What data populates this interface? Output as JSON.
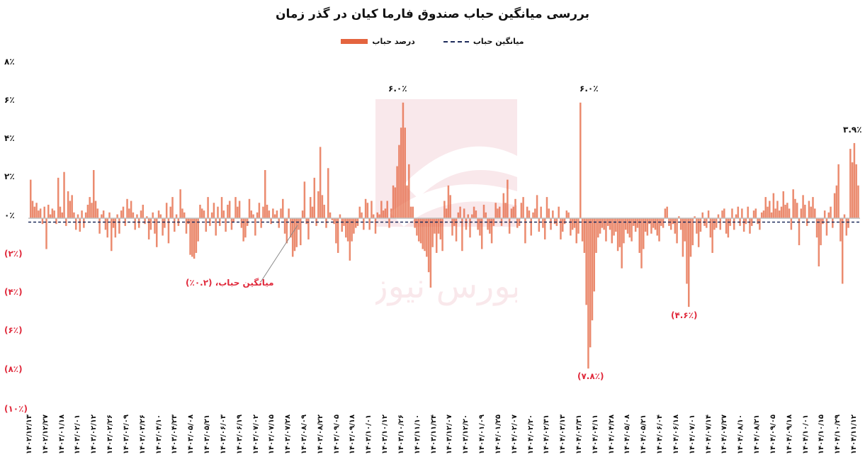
{
  "chart": {
    "title": "بررسی میانگین حباب صندوق فارما کیان در گذر زمان",
    "legend": [
      {
        "label": "میانگین حباب",
        "style": "dashed-line",
        "color": "#1d2b5a"
      },
      {
        "label": "درصد حباب",
        "style": "bar",
        "color": "#e4643f"
      }
    ],
    "y_ticks": [
      "۸٪",
      "۶٪",
      "۴٪",
      "۲٪",
      "۰٪",
      "(۲٪)",
      "(۴٪)",
      "(۶٪)",
      "(۸٪)",
      "(۱۰٪)"
    ],
    "annotations": {
      "peak1": "۶.۰٪",
      "peak2": "۶.۰٪",
      "last": "۳.۹٪",
      "trough1": "(۷.۸٪)",
      "trough2": "(۴.۶٪)",
      "mean_callout": "میانگین حباب، (۰.۲٪)"
    },
    "watermark": "بورس نیوز"
  },
  "chart_data": {
    "type": "bar",
    "title": "بررسی میانگین حباب صندوق فارما کیان در گذر زمان",
    "xlabel": "",
    "ylabel": "درصد حباب",
    "ylim": [
      -10,
      8
    ],
    "grid": false,
    "legend_position": "top",
    "tick_labels_x": [
      "۱۴۰۲/۱۲/۱۳",
      "۱۴۰۲/۱۲/۲۷",
      "۱۴۰۳/۰۱/۱۸",
      "۱۴۰۳/۰۲/۰۱",
      "۱۴۰۳/۰۲/۱۲",
      "۱۴۰۳/۰۲/۲۶",
      "۱۴۰۳/۰۳/۰۹",
      "۱۴۰۳/۰۳/۲۶",
      "۱۴۰۳/۰۴/۱۰",
      "۱۴۰۳/۰۴/۲۳",
      "۱۴۰۳/۰۵/۰۸",
      "۱۴۰۳/۰۵/۲۱",
      "۱۴۰۳/۰۶/۰۳",
      "۱۴۰۳/۰۶/۱۹",
      "۱۴۰۳/۰۷/۰۲",
      "۱۴۰۳/۰۷/۱۵",
      "۱۴۰۳/۰۷/۲۸",
      "۱۴۰۳/۰۸/۰۹",
      "۱۴۰۳/۰۸/۲۲",
      "۱۴۰۳/۰۹/۰۵",
      "۱۴۰۳/۰۹/۱۸",
      "۱۴۰۳/۱۰/۰۱",
      "۱۴۰۳/۱۰/۱۲",
      "۱۴۰۳/۱۰/۲۶",
      "۱۴۰۳/۱۱/۱۰",
      "۱۴۰۳/۱۱/۲۴",
      "۱۴۰۳/۱۲/۰۷",
      "۱۴۰۳/۱۲/۲۰",
      "۱۴۰۴/۰۱/۰۹",
      "۱۴۰۴/۰۱/۲۵",
      "۱۴۰۴/۰۲/۰۷",
      "۱۴۰۴/۰۲/۲۰",
      "۱۴۰۴/۰۲/۳۱",
      "۱۴۰۴/۰۳/۱۳",
      "۱۴۰۴/۰۳/۳۱",
      "۱۴۰۴/۰۴/۱۱",
      "۱۴۰۴/۰۴/۲۸",
      "۱۴۰۴/۰۵/۰۸",
      "۱۴۰۴/۰۵/۲۱",
      "۱۴۰۴/۰۶/۰۴",
      "۱۴۰۴/۰۶/۱۸",
      "۱۴۰۴/۰۷/۰۱",
      "۱۴۰۴/۰۷/۱۴",
      "۱۴۰۴/۰۷/۲۷",
      "۱۴۰۴/۰۸/۱۰",
      "۱۴۰۴/۰۸/۲۱",
      "۱۴۰۴/۰۹/۰۵",
      "۱۴۰۴/۰۹/۱۸",
      "۱۴۰۴/۱۰/۰۱",
      "۱۴۰۴/۱۰/۱۵",
      "۱۴۰۴/۱۰/۲۹",
      "۱۴۰۴/۱۱/۱۲"
    ],
    "series": [
      {
        "name": "درصد حباب",
        "color": "#e4643f",
        "values": [
          2.0,
          0.9,
          0.6,
          0.8,
          0.4,
          0.5,
          -0.3,
          0.6,
          -1.6,
          0.7,
          0.2,
          0.5,
          0.4,
          -0.3,
          2.1,
          0.6,
          0.3,
          2.4,
          -0.4,
          1.4,
          0.9,
          1.2,
          0.3,
          -0.6,
          0.2,
          -0.7,
          0.4,
          -0.5,
          0.3,
          0.7,
          1.1,
          0.8,
          2.5,
          0.9,
          0.5,
          -0.8,
          0.2,
          0.4,
          -0.6,
          -1.0,
          0.3,
          -1.7,
          -0.5,
          -1.0,
          0.2,
          -0.8,
          0.4,
          0.6,
          -0.4,
          1.0,
          0.5,
          0.9,
          0.3,
          -0.6,
          0.2,
          -0.5,
          0.4,
          0.7,
          -0.3,
          0.1,
          -1.1,
          -0.6,
          0.3,
          -0.8,
          -1.5,
          0.4,
          0.2,
          -0.9,
          -0.5,
          0.8,
          -1.3,
          0.6,
          1.1,
          -0.7,
          0.2,
          -0.4,
          1.5,
          0.5,
          0.3,
          -0.8,
          -0.3,
          -1.9,
          -2.0,
          -2.1,
          -1.8,
          -1.2,
          0.7,
          0.5,
          0.4,
          -0.7,
          1.1,
          -0.4,
          0.3,
          0.8,
          -0.9,
          0.6,
          -0.4,
          1.1,
          0.4,
          -0.7,
          0.7,
          0.9,
          -0.6,
          -0.2,
          1.1,
          0.6,
          0.9,
          -0.5,
          -1.2,
          -1.0,
          -0.4,
          1.0,
          0.4,
          0.2,
          -0.9,
          0.3,
          0.8,
          -0.5,
          0.6,
          2.5,
          0.7,
          0.4,
          -0.3,
          0.5,
          0.2,
          0.4,
          -0.5,
          0.5,
          1.0,
          -0.8,
          -1.3,
          0.5,
          -1.0,
          -2.0,
          -1.7,
          -1.5,
          -0.6,
          -1.4,
          0.4,
          1.9,
          -0.3,
          -1.1,
          1.1,
          0.6,
          2.1,
          -0.4,
          1.4,
          3.7,
          1.2,
          0.7,
          -0.5,
          2.6,
          0.3,
          -0.1,
          -0.3,
          -1.3,
          -1.8,
          0.2,
          -0.7,
          -0.4,
          -1.0,
          -1.2,
          -2.2,
          -1.2,
          -0.8,
          -0.5,
          -0.4,
          0.6,
          0.3,
          -0.6,
          1.0,
          0.8,
          -0.6,
          0.9,
          0.2,
          -0.8,
          0.3,
          0.2,
          0.9,
          0.4,
          0.5,
          0.9,
          -0.5,
          0.5,
          1.7,
          1.6,
          2.7,
          3.8,
          4.7,
          6.0,
          4.7,
          1.7,
          2.8,
          0.6,
          0.6,
          -0.5,
          -0.9,
          -1.2,
          -1.3,
          -1.6,
          -1.7,
          -2.0,
          -2.8,
          -3.6,
          -1.5,
          -0.8,
          -1.8,
          -0.8,
          -1.1,
          -1.7,
          0.9,
          0.5,
          1.7,
          1.2,
          -0.9,
          -0.4,
          -1.2,
          0.3,
          0.6,
          -1.7,
          0.5,
          -0.6,
          0.2,
          -1.0,
          0.2,
          0.6,
          0.4,
          -0.6,
          -0.9,
          -1.6,
          0.7,
          0.3,
          -0.6,
          -0.8,
          -1.3,
          -0.4,
          0.8,
          0.5,
          0.6,
          -0.4,
          1.3,
          0.8,
          2.0,
          -0.8,
          0.5,
          0.6,
          1.0,
          -0.5,
          -0.4,
          0.8,
          1.1,
          -1.3,
          0.6,
          0.4,
          -0.9,
          0.3,
          0.5,
          1.2,
          -0.7,
          0.6,
          -0.5,
          -1.1,
          1.1,
          0.5,
          -0.6,
          0.4,
          -0.3,
          -0.4,
          0.6,
          -1.1,
          -0.7,
          -0.3,
          0.4,
          0.3,
          -0.9,
          -0.6,
          -0.5,
          -1.3,
          -0.8,
          6.0,
          -1.2,
          -1.8,
          -4.5,
          -7.8,
          -6.7,
          -5.3,
          -3.8,
          -1.8,
          -1.0,
          -0.8,
          -0.5,
          -0.6,
          -1.2,
          -0.4,
          -0.6,
          -1.3,
          -0.9,
          -0.7,
          -1.7,
          -1.5,
          -2.6,
          -1.3,
          -0.6,
          -0.8,
          -1.0,
          -1.2,
          -0.4,
          -0.7,
          -0.5,
          -1.8,
          -2.6,
          -1.6,
          -0.7,
          -0.9,
          -0.3,
          -0.8,
          -0.5,
          -0.6,
          -0.9,
          -1.2,
          -0.4,
          -0.5,
          0.5,
          0.6,
          -0.4,
          -0.6,
          -0.3,
          -0.8,
          -1.3,
          0.1,
          -0.6,
          -2.0,
          -1.2,
          -3.4,
          -4.6,
          -2.0,
          -1.4,
          0.1,
          -0.8,
          -1.5,
          -0.7,
          0.3,
          -0.4,
          -0.5,
          0.4,
          -1.0,
          -1.8,
          -0.6,
          -0.5,
          0.2,
          -0.6,
          0.4,
          0.5,
          -0.8,
          -1.0,
          -0.4,
          0.5,
          -0.6,
          0.2,
          0.6,
          -0.4,
          0.5,
          -0.7,
          -0.3,
          0.6,
          -0.8,
          -0.4,
          0.4,
          0.5,
          -0.3,
          -0.6,
          0.3,
          0.4,
          1.1,
          0.6,
          0.9,
          0.3,
          1.3,
          0.5,
          0.9,
          0.4,
          0.6,
          1.4,
          0.7,
          0.8,
          0.5,
          -0.6,
          1.5,
          1.0,
          0.8,
          -1.4,
          0.5,
          1.2,
          0.7,
          -0.4,
          0.9,
          0.6,
          1.1,
          0.5,
          -1.0,
          -2.5,
          -1.4,
          -0.3,
          0.4,
          -0.9,
          0.3,
          0.6,
          -0.5,
          1.3,
          1.7,
          2.8,
          -1.2,
          -3.4,
          0.2,
          -0.9,
          -0.5,
          3.6,
          2.9,
          3.9,
          2.8,
          1.7
        ]
      },
      {
        "name": "میانگین حباب",
        "type": "line",
        "style": "dashed",
        "color": "#1d2b5a",
        "value": -0.2
      }
    ],
    "annotations": [
      {
        "text": "۶.۰٪",
        "value": 6.0,
        "position": "top"
      },
      {
        "text": "۶.۰٪",
        "value": 6.0,
        "position": "top"
      },
      {
        "text": "۳.۹٪",
        "value": 3.9,
        "position": "top-right"
      },
      {
        "text": "(۷.۸٪)",
        "value": -7.8,
        "position": "bottom"
      },
      {
        "text": "(۴.۶٪)",
        "value": -4.6,
        "position": "bottom"
      },
      {
        "text": "میانگین حباب، (۰.۲٪)",
        "value": -0.2,
        "position": "callout"
      }
    ]
  }
}
